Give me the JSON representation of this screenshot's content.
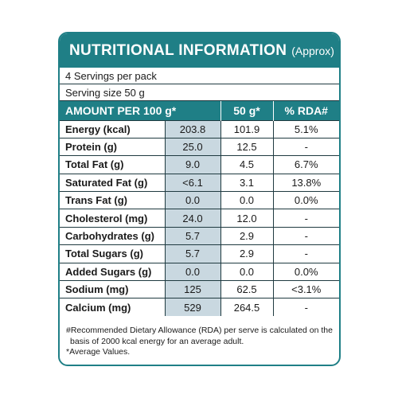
{
  "label": {
    "title": "NUTRITIONAL INFORMATION",
    "title_suffix": "(Approx)",
    "servings_per_pack": "4 Servings per pack",
    "serving_size": "Serving size 50 g",
    "headers": {
      "amount": "AMOUNT PER 100 g*",
      "per_serving": "50 g*",
      "rda": "% RDA#"
    },
    "rows": [
      {
        "nutrient": "Energy (kcal)",
        "per100": "203.8",
        "per50": "101.9",
        "rda": "5.1%"
      },
      {
        "nutrient": "Protein (g)",
        "per100": "25.0",
        "per50": "12.5",
        "rda": "-"
      },
      {
        "nutrient": "Total Fat (g)",
        "per100": "9.0",
        "per50": "4.5",
        "rda": "6.7%"
      },
      {
        "nutrient": "Saturated Fat (g)",
        "per100": "<6.1",
        "per50": "3.1",
        "rda": "13.8%"
      },
      {
        "nutrient": "Trans Fat (g)",
        "per100": "0.0",
        "per50": "0.0",
        "rda": "0.0%"
      },
      {
        "nutrient": "Cholesterol (mg)",
        "per100": "24.0",
        "per50": "12.0",
        "rda": "-"
      },
      {
        "nutrient": "Carbohydrates (g)",
        "per100": "5.7",
        "per50": "2.9",
        "rda": "-"
      },
      {
        "nutrient": "Total Sugars (g)",
        "per100": "5.7",
        "per50": "2.9",
        "rda": "-"
      },
      {
        "nutrient": "Added Sugars (g)",
        "per100": "0.0",
        "per50": "0.0",
        "rda": "0.0%"
      },
      {
        "nutrient": "Sodium (mg)",
        "per100": "125",
        "per50": "62.5",
        "rda": "<3.1%"
      },
      {
        "nutrient": "Calcium (mg)",
        "per100": "529",
        "per50": "264.5",
        "rda": "-"
      }
    ],
    "footnotes": {
      "rda_line1": "#Recommended Dietary Allowance (RDA) per serve is calculated on the",
      "rda_line2": "basis of 2000 kcal energy for an average adult.",
      "average": "*Average Values."
    }
  },
  "colors": {
    "teal": "#1f7f86",
    "shaded_cell": "#c9d8e0",
    "border_dark": "#1f3a40"
  }
}
